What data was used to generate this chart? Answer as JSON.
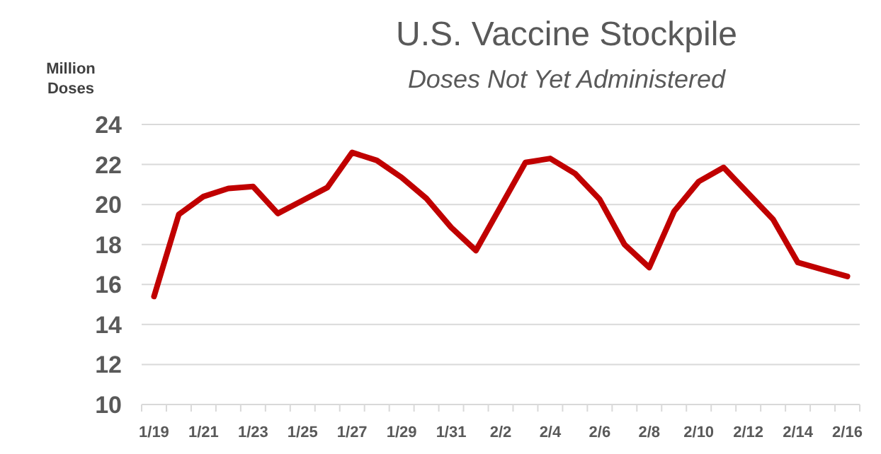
{
  "chart_data": {
    "type": "line",
    "title": "U.S. Vaccine Stockpile",
    "subtitle": "Doses Not Yet Administered",
    "ylabel": "Million Doses",
    "categories": [
      "1/19",
      null,
      "1/21",
      null,
      "1/23",
      null,
      "1/25",
      null,
      "1/27",
      null,
      "1/29",
      null,
      "1/31",
      null,
      "2/2",
      null,
      "2/4",
      null,
      "2/6",
      null,
      "2/8",
      null,
      "2/10",
      null,
      "2/12",
      null,
      "2/14",
      null,
      "2/16"
    ],
    "series": [
      {
        "color": "#c00000",
        "values": [
          15.4,
          19.5,
          20.4,
          20.8,
          20.9,
          19.55,
          20.2,
          20.85,
          22.6,
          22.2,
          21.35,
          20.3,
          18.85,
          17.7,
          19.9,
          22.1,
          22.3,
          21.55,
          20.25,
          18.0,
          16.85,
          19.65,
          21.15,
          21.85,
          20.55,
          19.25,
          17.1,
          16.75,
          16.4
        ]
      }
    ],
    "ylim": [
      10,
      24
    ],
    "yticks": [
      10,
      12,
      14,
      16,
      18,
      20,
      22,
      24
    ],
    "grid": "y",
    "marker": "none",
    "line_style": "solid"
  }
}
